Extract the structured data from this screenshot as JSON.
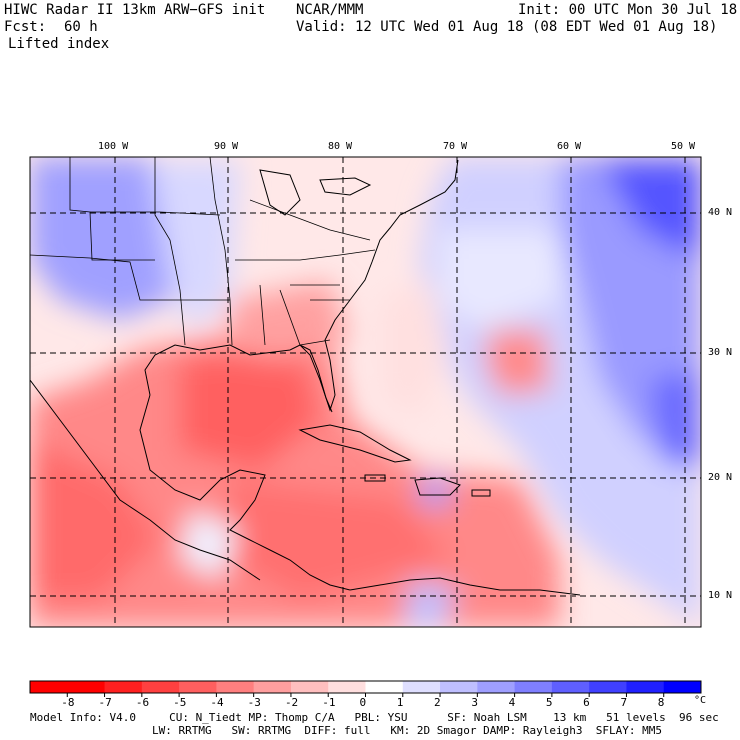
{
  "header": {
    "model_title": "HIWC Radar II 13km ARW−GFS init",
    "org": "NCAR/MMM",
    "init": "Init: 00 UTC Mon 30 Jul 18",
    "fcst_label": "Fcst:",
    "fcst_value": "60 h",
    "valid": "Valid: 12 UTC Wed 01 Aug 18 (08 EDT Wed 01 Aug 18)",
    "field": "Lifted index"
  },
  "map": {
    "lon_labels": [
      "100 W",
      "90 W",
      "80 W",
      "70 W",
      "60 W",
      "50 W"
    ],
    "lat_labels": [
      "40 N",
      "30 N",
      "20 N",
      "10 N"
    ]
  },
  "colorbar": {
    "ticks": [
      "-8",
      "-7",
      "-6",
      "-5",
      "-4",
      "-3",
      "-2",
      "-1",
      "0",
      "1",
      "2",
      "3",
      "4",
      "5",
      "6",
      "7",
      "8"
    ],
    "unit": "°C",
    "colors": [
      "#ff0000",
      "#ff2020",
      "#ff4040",
      "#ff5f5f",
      "#ff7f7f",
      "#ff9f9f",
      "#ffbfbf",
      "#ffdfdf",
      "#ffffff",
      "#dfdfff",
      "#bfbfff",
      "#9f9fff",
      "#7f7fff",
      "#5f5fff",
      "#4040ff",
      "#2020ff",
      "#0000ff"
    ]
  },
  "footer": {
    "line1": "Model Info: V4.0     CU: N_Tiedt MP: Thomp C/A   PBL: YSU      SF: Noah LSM    13 km   51 levels  96 sec",
    "line2": "LW: RRTMG   SW: RRTMG  DIFF: full   KM: 2D Smagor DAMP: Rayleigh3  SFLAY: MM5"
  }
}
